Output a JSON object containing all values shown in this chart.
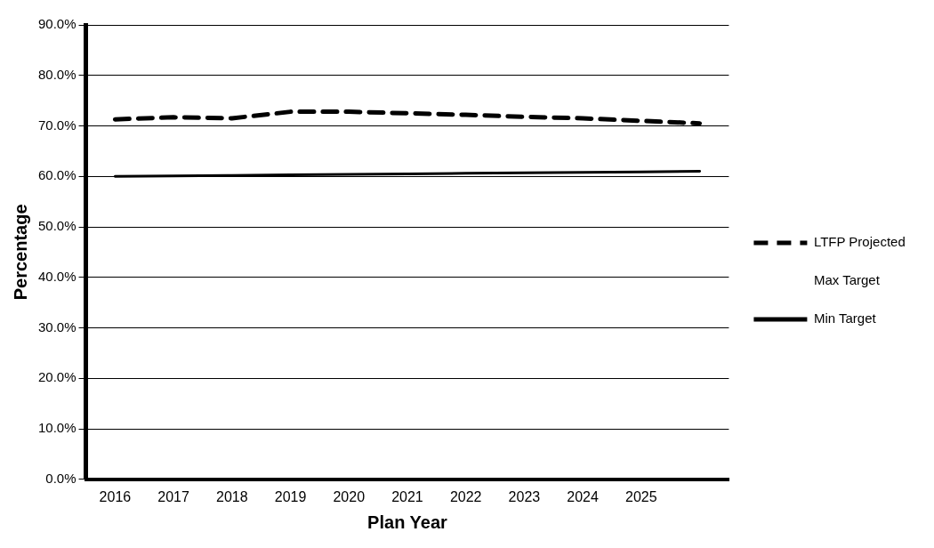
{
  "chart_data": {
    "type": "line",
    "xlabel": "Plan Year",
    "ylabel": "Percentage",
    "categories": [
      "2016",
      "2017",
      "2018",
      "2019",
      "2020",
      "2021",
      "2022",
      "2023",
      "2024",
      "2025",
      null
    ],
    "series": [
      {
        "name": "LTFP Projected",
        "color": "#000000",
        "line_style": "dashed",
        "values": [
          71.3,
          71.7,
          71.5,
          72.8,
          72.8,
          72.5,
          72.2,
          71.8,
          71.5,
          71.0,
          70.5
        ]
      },
      {
        "name": "Max Target",
        "values": [
          null,
          null,
          null,
          null,
          null,
          null,
          null,
          null,
          null,
          null,
          null
        ]
      },
      {
        "name": "Min Target",
        "color": "#000000",
        "line_style": "solid",
        "values": [
          60.0,
          60.1,
          60.2,
          60.3,
          60.4,
          60.5,
          60.6,
          60.7,
          60.8,
          60.9,
          61.0
        ]
      }
    ],
    "ylim": [
      0,
      90
    ],
    "yticks": [
      {
        "value": 0,
        "label": "0.0%"
      },
      {
        "value": 10,
        "label": "10.0%"
      },
      {
        "value": 20,
        "label": "20.0%"
      },
      {
        "value": 30,
        "label": "30.0%"
      },
      {
        "value": 40,
        "label": "40.0%"
      },
      {
        "value": 50,
        "label": "50.0%"
      },
      {
        "value": 60,
        "label": "60.0%"
      },
      {
        "value": 70,
        "label": "70.0%"
      },
      {
        "value": 80,
        "label": "80.0%"
      },
      {
        "value": 90,
        "label": "90.0%"
      }
    ],
    "grid": "y",
    "legend": "right",
    "marker": "none"
  }
}
